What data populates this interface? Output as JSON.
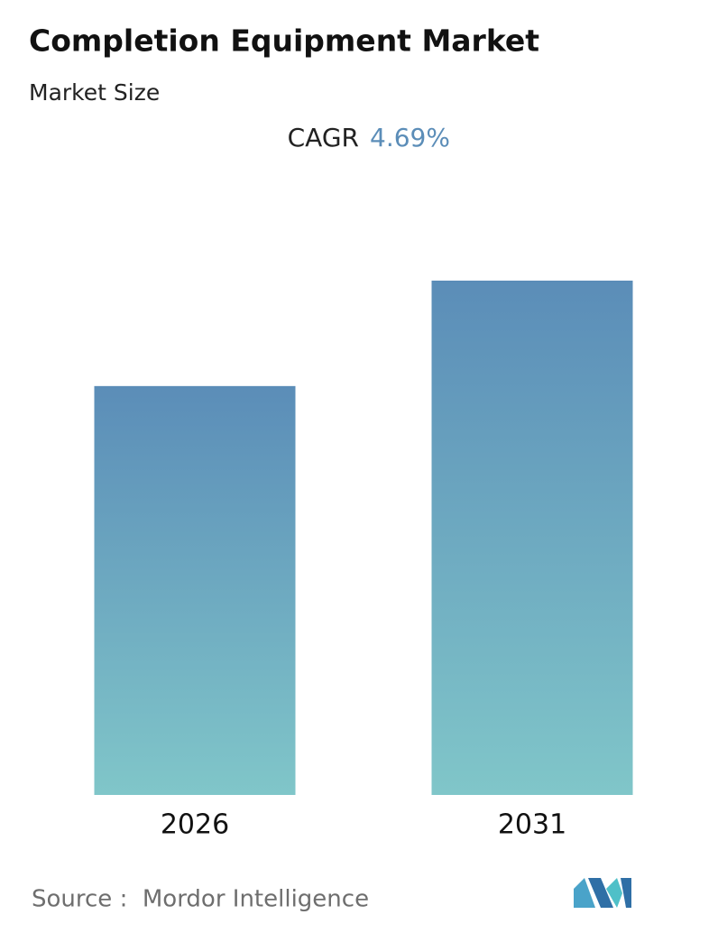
{
  "chart_data": {
    "type": "bar",
    "title": "Completion Equipment Market",
    "subtitle": "Market Size",
    "cagr": {
      "label": "CAGR",
      "value": 4.69,
      "value_label": "4.69%"
    },
    "categories": [
      "2026",
      "2031"
    ],
    "values": [
      79.5,
      100
    ],
    "colors": [
      "#5b8db8",
      "#80c6c9"
    ],
    "ylim": [
      0,
      100
    ],
    "source": "Source :  Mordor Intelligence"
  }
}
